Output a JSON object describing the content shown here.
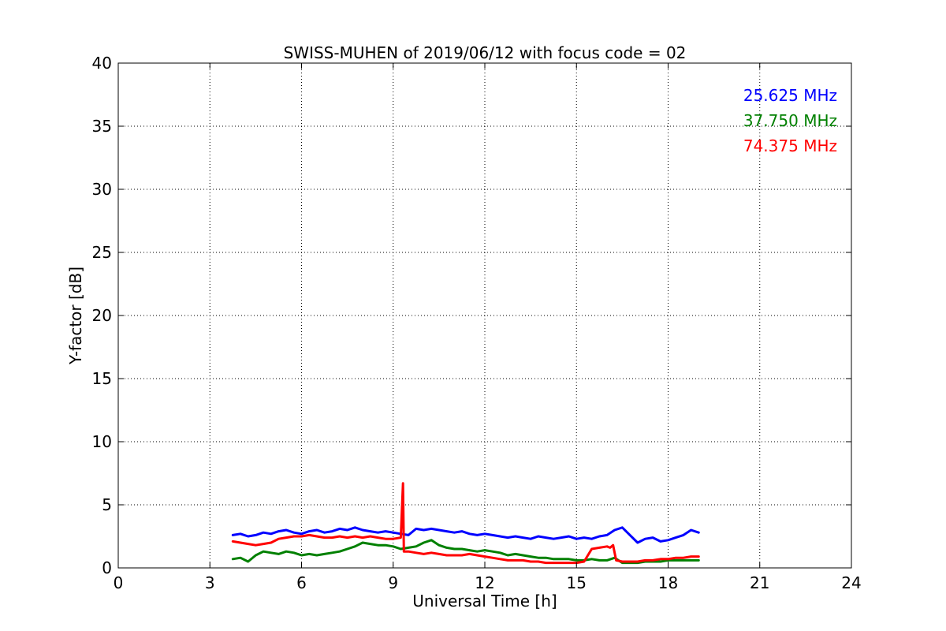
{
  "chart_data": {
    "type": "line",
    "title": "SWISS-MUHEN of 2019/06/12 with focus code = 02",
    "xlabel": "Universal Time [h]",
    "ylabel": "Y-factor [dB]",
    "xlim": [
      0,
      24
    ],
    "ylim": [
      0,
      40
    ],
    "xticks": [
      0,
      3,
      6,
      9,
      12,
      15,
      18,
      21,
      24
    ],
    "yticks": [
      0,
      5,
      10,
      15,
      20,
      25,
      30,
      35,
      40
    ],
    "grid": true,
    "legend_position": "top-right",
    "series": [
      {
        "name": "25.625 MHz",
        "color": "#0000ff",
        "x": [
          3.75,
          4.0,
          4.25,
          4.5,
          4.75,
          5.0,
          5.25,
          5.5,
          5.75,
          6.0,
          6.25,
          6.5,
          6.75,
          7.0,
          7.25,
          7.5,
          7.75,
          8.0,
          8.25,
          8.5,
          8.75,
          9.0,
          9.25,
          9.5,
          9.75,
          10.0,
          10.25,
          10.5,
          10.75,
          11.0,
          11.25,
          11.5,
          11.75,
          12.0,
          12.25,
          12.5,
          12.75,
          13.0,
          13.25,
          13.5,
          13.75,
          14.0,
          14.25,
          14.5,
          14.75,
          15.0,
          15.25,
          15.5,
          15.75,
          16.0,
          16.25,
          16.5,
          16.75,
          17.0,
          17.25,
          17.5,
          17.75,
          18.0,
          18.25,
          18.5,
          18.75,
          19.0
        ],
        "y": [
          2.6,
          2.7,
          2.5,
          2.6,
          2.8,
          2.7,
          2.9,
          3.0,
          2.8,
          2.7,
          2.9,
          3.0,
          2.8,
          2.9,
          3.1,
          3.0,
          3.2,
          3.0,
          2.9,
          2.8,
          2.9,
          2.8,
          2.7,
          2.6,
          3.1,
          3.0,
          3.1,
          3.0,
          2.9,
          2.8,
          2.9,
          2.7,
          2.6,
          2.7,
          2.6,
          2.5,
          2.4,
          2.5,
          2.4,
          2.3,
          2.5,
          2.4,
          2.3,
          2.4,
          2.5,
          2.3,
          2.4,
          2.3,
          2.5,
          2.6,
          3.0,
          3.2,
          2.6,
          2.0,
          2.3,
          2.4,
          2.1,
          2.2,
          2.4,
          2.6,
          3.0,
          2.8
        ]
      },
      {
        "name": "37.750 MHz",
        "color": "#008000",
        "x": [
          3.75,
          4.0,
          4.25,
          4.5,
          4.75,
          5.0,
          5.25,
          5.5,
          5.75,
          6.0,
          6.25,
          6.5,
          6.75,
          7.0,
          7.25,
          7.5,
          7.75,
          8.0,
          8.25,
          8.5,
          8.75,
          9.0,
          9.25,
          9.5,
          9.75,
          10.0,
          10.25,
          10.5,
          10.75,
          11.0,
          11.25,
          11.5,
          11.75,
          12.0,
          12.25,
          12.5,
          12.75,
          13.0,
          13.25,
          13.5,
          13.75,
          14.0,
          14.25,
          14.5,
          14.75,
          15.0,
          15.25,
          15.5,
          15.75,
          16.0,
          16.25,
          16.5,
          16.75,
          17.0,
          17.25,
          17.5,
          17.75,
          18.0,
          18.25,
          18.5,
          18.75,
          19.0
        ],
        "y": [
          0.7,
          0.8,
          0.5,
          1.0,
          1.3,
          1.2,
          1.1,
          1.3,
          1.2,
          1.0,
          1.1,
          1.0,
          1.1,
          1.2,
          1.3,
          1.5,
          1.7,
          2.0,
          1.9,
          1.8,
          1.8,
          1.7,
          1.5,
          1.6,
          1.7,
          2.0,
          2.2,
          1.8,
          1.6,
          1.5,
          1.5,
          1.4,
          1.3,
          1.4,
          1.3,
          1.2,
          1.0,
          1.1,
          1.0,
          0.9,
          0.8,
          0.8,
          0.7,
          0.7,
          0.7,
          0.6,
          0.6,
          0.7,
          0.6,
          0.6,
          0.8,
          0.4,
          0.4,
          0.4,
          0.5,
          0.5,
          0.5,
          0.6,
          0.6,
          0.6,
          0.6,
          0.6
        ]
      },
      {
        "name": "74.375 MHz",
        "color": "#ff0000",
        "x": [
          3.75,
          4.0,
          4.25,
          4.5,
          4.75,
          5.0,
          5.25,
          5.5,
          5.75,
          6.0,
          6.25,
          6.5,
          6.75,
          7.0,
          7.25,
          7.5,
          7.75,
          8.0,
          8.25,
          8.5,
          8.75,
          9.0,
          9.25,
          9.32,
          9.35,
          9.5,
          9.75,
          10.0,
          10.25,
          10.5,
          10.75,
          11.0,
          11.25,
          11.5,
          11.75,
          12.0,
          12.25,
          12.5,
          12.75,
          13.0,
          13.25,
          13.5,
          13.75,
          14.0,
          14.25,
          14.5,
          14.75,
          15.0,
          15.25,
          15.5,
          15.75,
          16.0,
          16.1,
          16.2,
          16.3,
          16.5,
          16.75,
          17.0,
          17.25,
          17.5,
          17.75,
          18.0,
          18.25,
          18.5,
          18.75,
          19.0
        ],
        "y": [
          2.1,
          2.0,
          1.9,
          1.8,
          1.9,
          2.0,
          2.3,
          2.4,
          2.5,
          2.5,
          2.6,
          2.5,
          2.4,
          2.4,
          2.5,
          2.4,
          2.5,
          2.4,
          2.5,
          2.4,
          2.3,
          2.3,
          2.4,
          6.7,
          1.3,
          1.3,
          1.2,
          1.1,
          1.2,
          1.1,
          1.0,
          1.0,
          1.0,
          1.1,
          1.0,
          0.9,
          0.8,
          0.7,
          0.6,
          0.6,
          0.6,
          0.5,
          0.5,
          0.4,
          0.4,
          0.4,
          0.4,
          0.4,
          0.5,
          1.5,
          1.6,
          1.7,
          1.6,
          1.8,
          0.6,
          0.5,
          0.5,
          0.5,
          0.6,
          0.6,
          0.7,
          0.7,
          0.8,
          0.8,
          0.9,
          0.9
        ]
      }
    ]
  }
}
